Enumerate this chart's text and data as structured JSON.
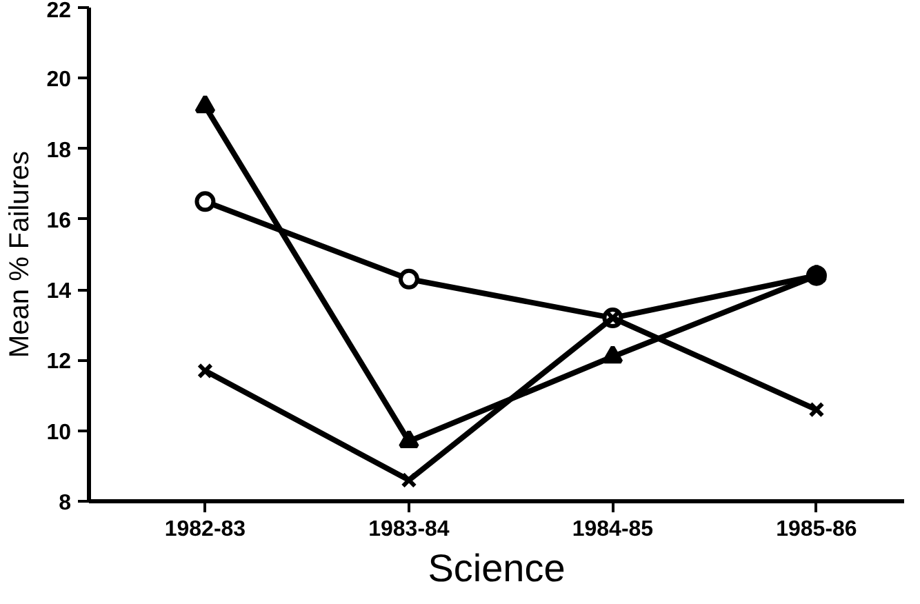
{
  "chart_data": {
    "type": "line",
    "xlabel": "Science",
    "ylabel": "Mean % Failures",
    "categories": [
      "1982-83",
      "1983-84",
      "1984-85",
      "1985-86"
    ],
    "ylim": [
      8,
      22
    ],
    "yticks": [
      8,
      10,
      12,
      14,
      16,
      18,
      20,
      22
    ],
    "grid": false,
    "series": [
      {
        "color": "#000000",
        "marker": "circle",
        "values": [
          16.5,
          14.3,
          13.2,
          14.4
        ]
      },
      {
        "color": "#000000",
        "marker": "triangle",
        "values": [
          19.2,
          9.7,
          12.1,
          14.4
        ]
      },
      {
        "color": "#000000",
        "marker": "cross",
        "values": [
          11.7,
          8.6,
          13.2,
          10.6
        ]
      }
    ]
  }
}
